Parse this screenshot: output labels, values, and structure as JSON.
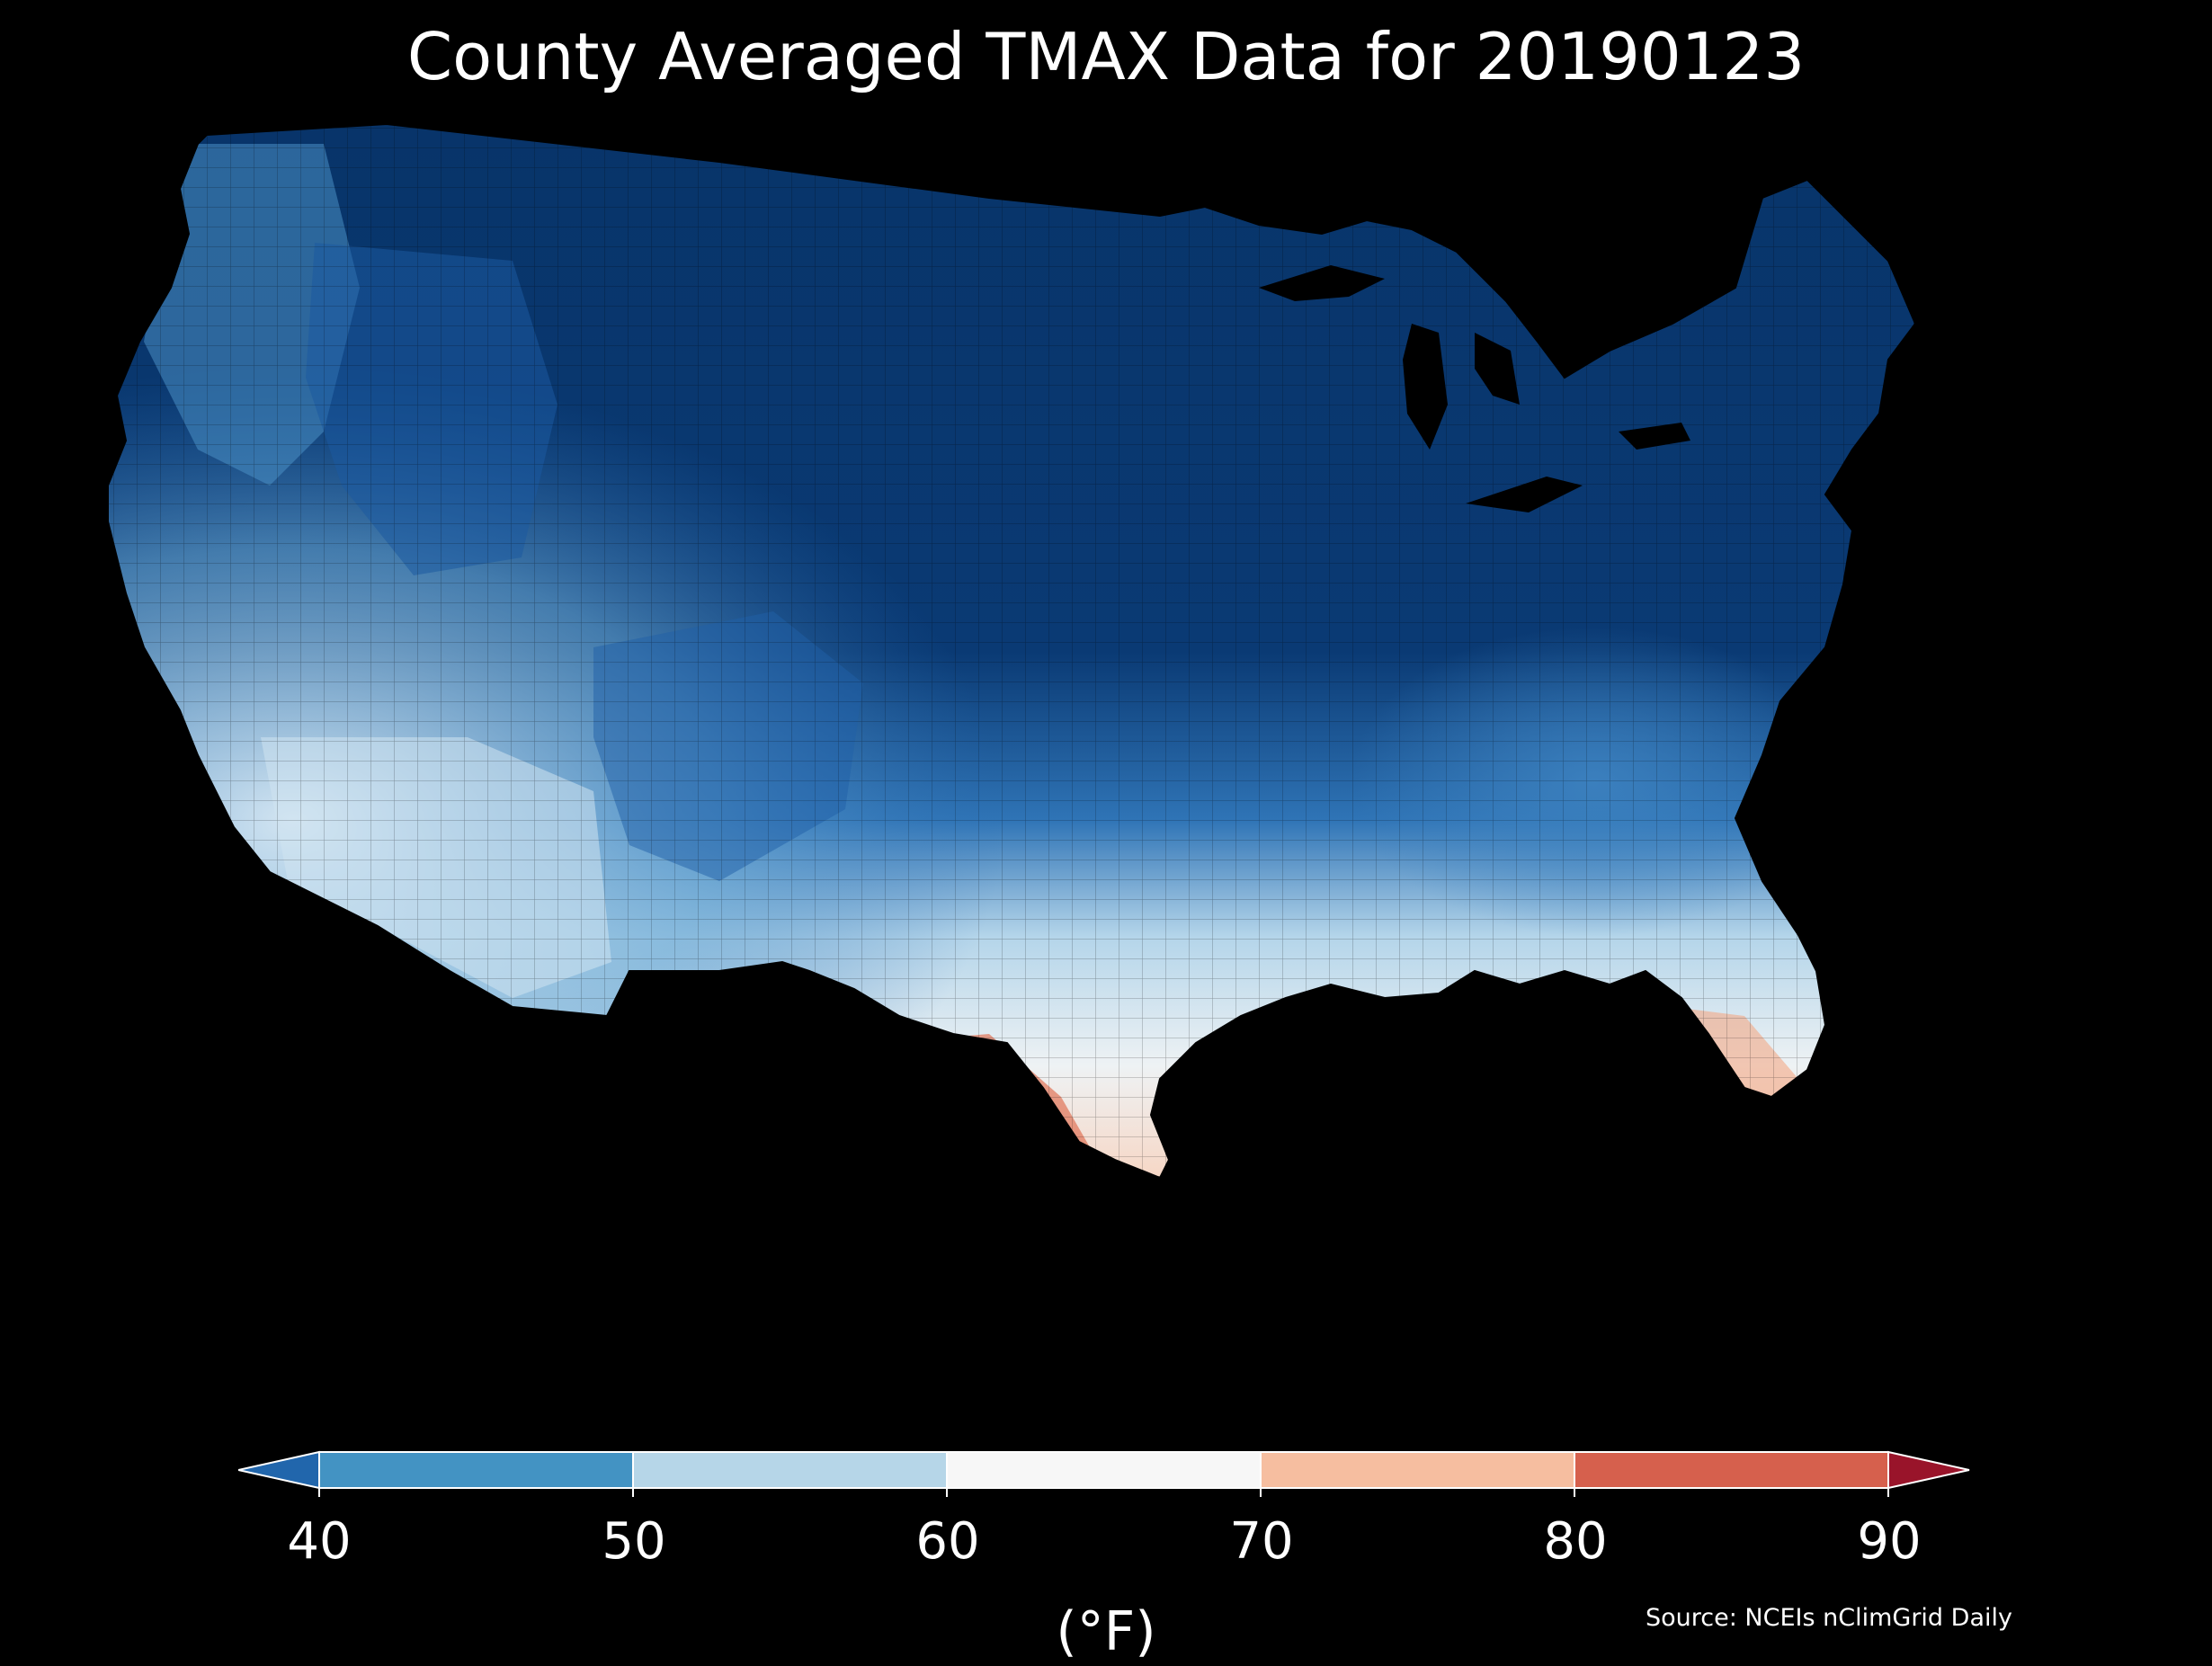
{
  "title": "County Averaged TMAX Data for 20190123",
  "source_note": "Source: NCEIs nClimGrid Daily",
  "colorbar": {
    "label": "(°F)",
    "ticks": [
      "40",
      "50",
      "60",
      "70",
      "80",
      "90"
    ],
    "extend": "both",
    "segments": [
      {
        "range": "<40",
        "color": "#2166ac"
      },
      {
        "range": "40-50",
        "color": "#4393c3"
      },
      {
        "range": "50-60",
        "color": "#b6d6e8"
      },
      {
        "range": "60-70",
        "color": "#f7f7f7"
      },
      {
        "range": "70-80",
        "color": "#f6bea0"
      },
      {
        "range": "80-90",
        "color": "#d6604d"
      },
      {
        "range": ">90",
        "color": "#99142a"
      }
    ]
  },
  "map": {
    "region": "Contiguous United States",
    "variable": "TMAX",
    "units": "°F",
    "background": "#000000",
    "regional_pattern": [
      {
        "region": "Northern Plains, Upper Midwest, Great Lakes, Northeast",
        "color": "#083469"
      },
      {
        "region": "Northern Rockies",
        "color": "#1c5aa0"
      },
      {
        "region": "Pacific Northwest",
        "color": "#4a8fc4"
      },
      {
        "region": "Central Plains / Southern Rockies",
        "color": "#2a6db4"
      },
      {
        "region": "Ohio Valley / Mid-South",
        "color": "#b7d6ea"
      },
      {
        "region": "Appalachians / Carolinas",
        "color": "#4f93c8"
      },
      {
        "region": "California / Southwest deserts",
        "color": "#cfe3f0"
      },
      {
        "region": "Deep South",
        "color": "#f4f3f1"
      },
      {
        "region": "Gulf Coast / Florida",
        "color": "#f6bea0"
      },
      {
        "region": "South Texas",
        "color": "#e68366"
      }
    ]
  }
}
